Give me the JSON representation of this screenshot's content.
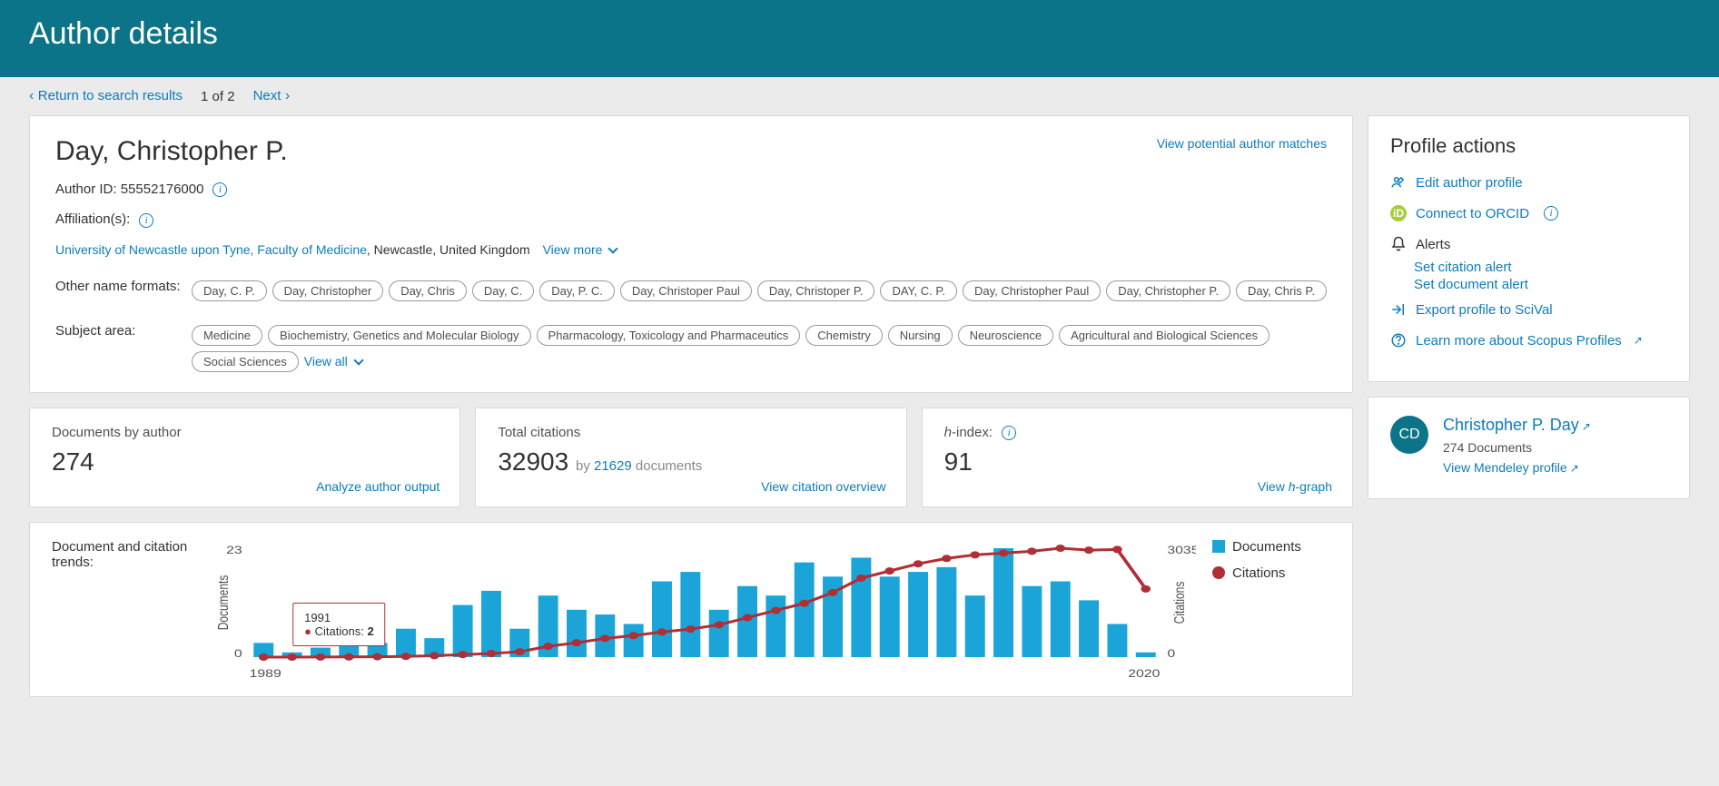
{
  "header": {
    "title": "Author details"
  },
  "nav": {
    "return": "Return to search results",
    "page": "1 of 2",
    "next": "Next"
  },
  "author": {
    "name": "Day, Christopher P.",
    "id_label": "Author ID: 55552176000",
    "affil_label": "Affiliation(s):",
    "affil_link": "University of Newcastle upon Tyne, Faculty of Medicine",
    "affil_rest": ", Newcastle, United Kingdom",
    "view_more": "View more",
    "potential": "View potential author matches",
    "other_label": "Other name formats:",
    "names": [
      "Day, C. P.",
      "Day, Christopher",
      "Day, Chris",
      "Day, C.",
      "Day, P. C.",
      "Day, Christoper Paul",
      "Day, Christoper P.",
      "DAY, C. P.",
      "Day, Christopher Paul",
      "Day, Christopher P.",
      "Day, Chris P."
    ],
    "subject_label": "Subject area:",
    "subjects": [
      "Medicine",
      "Biochemistry, Genetics and Molecular Biology",
      "Pharmacology, Toxicology and Pharmaceutics",
      "Chemistry",
      "Nursing",
      "Neuroscience",
      "Agricultural and Biological Sciences",
      "Social Sciences"
    ],
    "view_all": "View all"
  },
  "stats": {
    "docs": {
      "title": "Documents by author",
      "value": "274",
      "action": "Analyze author output"
    },
    "cit": {
      "title": "Total citations",
      "value": "32903",
      "by": "by ",
      "num": "21629",
      "docs": " documents",
      "action": "View citation overview"
    },
    "hindex": {
      "title_pre": "h",
      "title_post": "-index:",
      "value": "91",
      "action_pre": "View ",
      "action_h": "h",
      "action_post": "-graph"
    }
  },
  "chart": {
    "title": "Document and citation trends:",
    "y1_max": "23",
    "y1_min": "0",
    "y2_max": "3035",
    "y2_min": "0",
    "x_start": "1989",
    "x_end": "2020",
    "doc_label_y": "Documents",
    "cit_label_y": "Citations",
    "legend_docs": "Documents",
    "legend_cit": "Citations",
    "tooltip_year": "1991",
    "tooltip_label": "Citations: ",
    "tooltip_val": "2",
    "bars": [
      3,
      1,
      2,
      4,
      3,
      6,
      4,
      11,
      14,
      6,
      13,
      10,
      9,
      7,
      16,
      18,
      10,
      15,
      13,
      20,
      17,
      21,
      17,
      18,
      19,
      13,
      23,
      15,
      16,
      12,
      7,
      1
    ],
    "cit": [
      0,
      0,
      2,
      5,
      10,
      20,
      40,
      70,
      100,
      150,
      300,
      400,
      520,
      600,
      700,
      780,
      900,
      1100,
      1300,
      1500,
      1800,
      2200,
      2400,
      2600,
      2750,
      2850,
      2900,
      2950,
      3035,
      2980,
      3000,
      1900
    ],
    "bar_color": "#1ba4d8",
    "line_color": "#b02e36"
  },
  "actions": {
    "heading": "Profile actions",
    "edit": "Edit author profile",
    "orcid": "Connect to ORCID",
    "alerts": "Alerts",
    "cit_alert": "Set citation alert",
    "doc_alert": "Set document alert",
    "export": "Export profile to SciVal",
    "learn": "Learn more about Scopus Profiles"
  },
  "mini": {
    "initials": "CD",
    "name": "Christopher P. Day",
    "docs": "274 Documents",
    "mendeley": "View Mendeley profile"
  }
}
